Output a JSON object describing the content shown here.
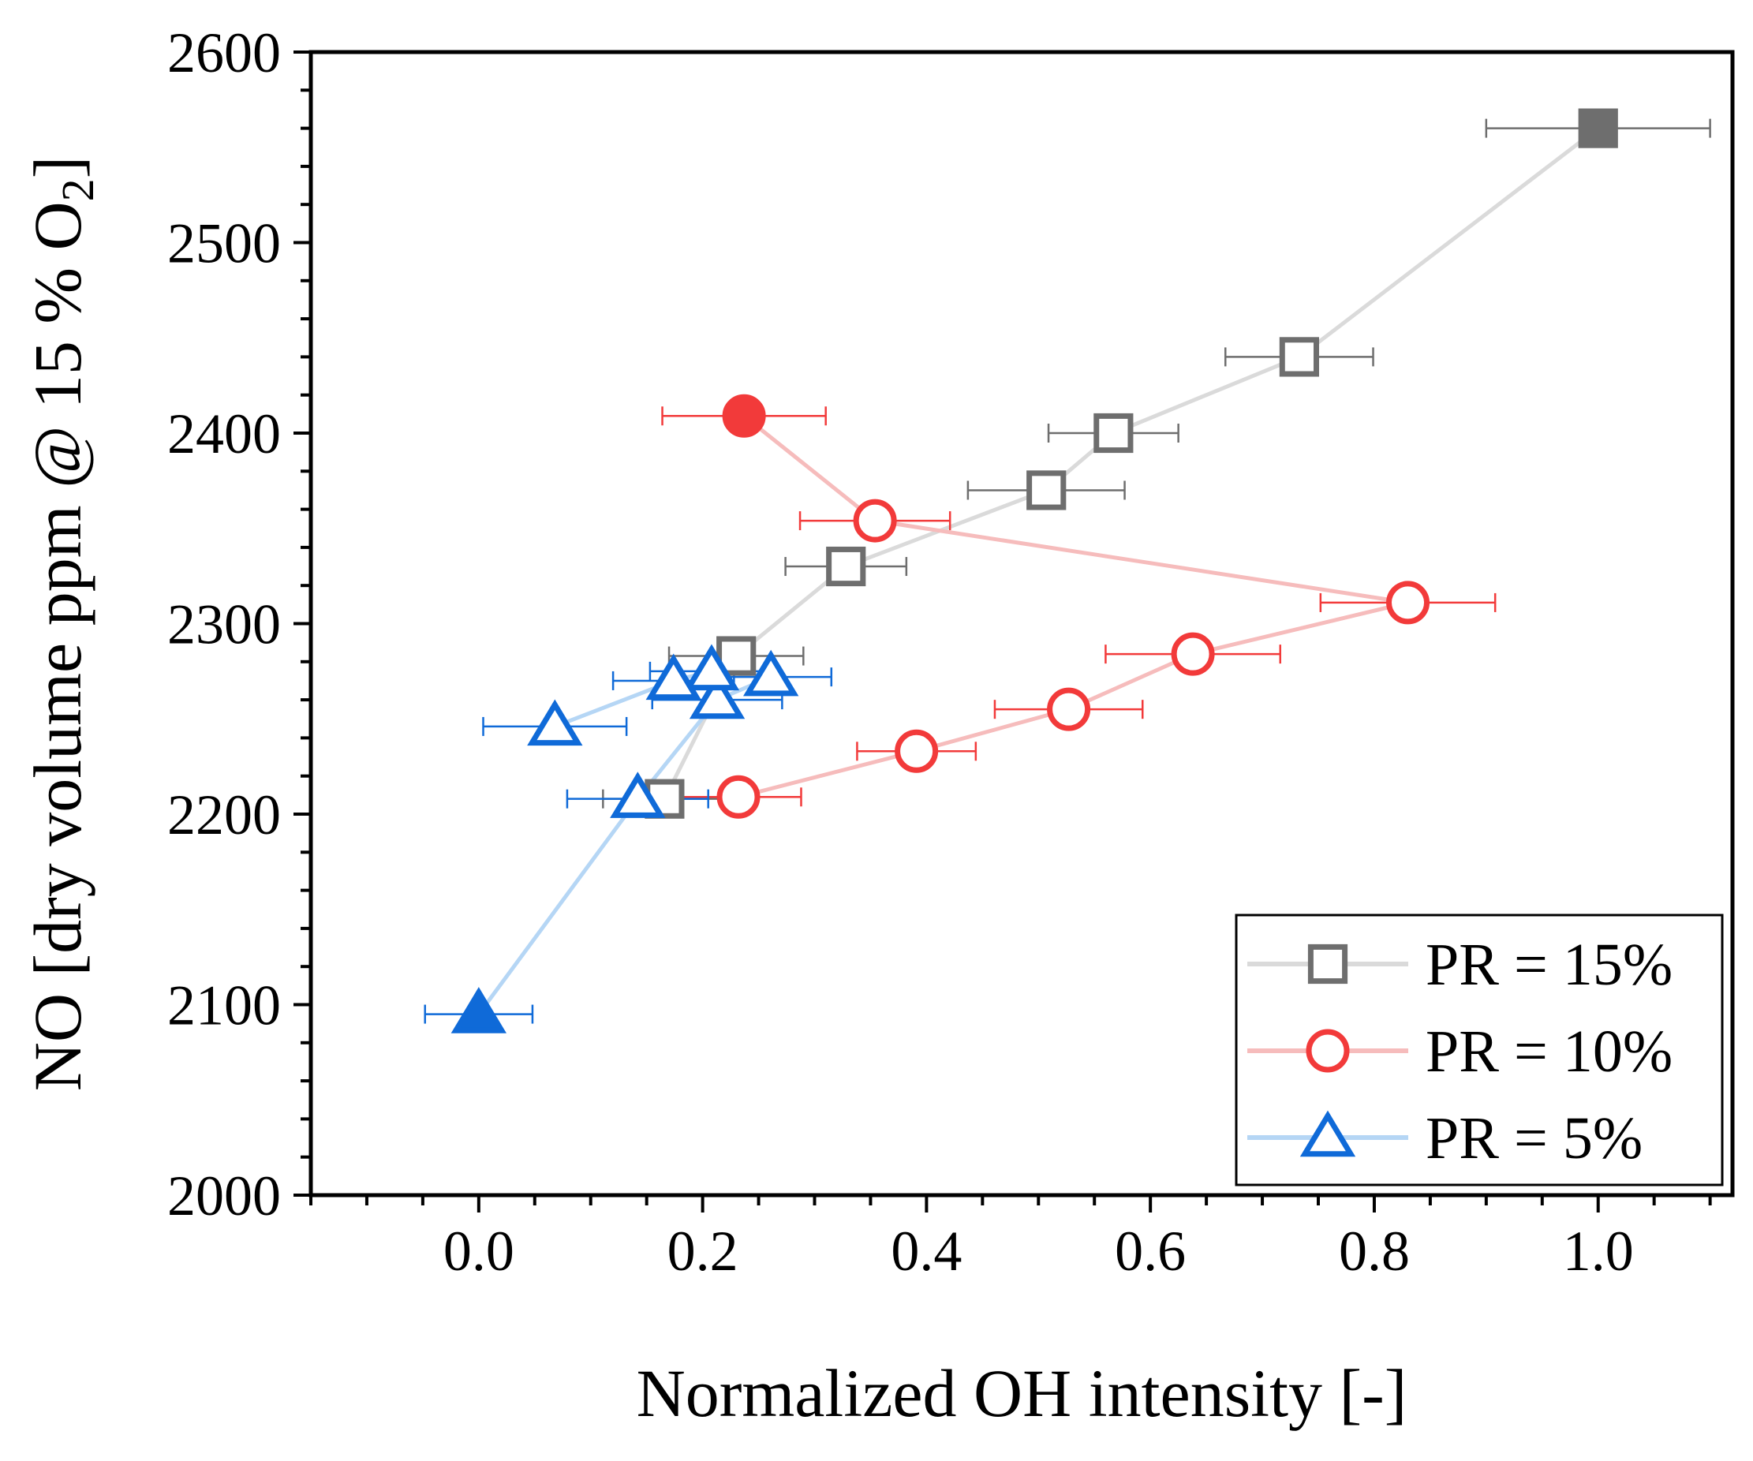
{
  "chart_data": {
    "type": "scatter",
    "xlabel": "Normalized OH intensity [-]",
    "ylabel_main": "NO [dry volume ppm @ 15 % O",
    "ylabel_sub": "2",
    "ylabel_close": "]",
    "xlim": [
      -0.15,
      1.12
    ],
    "ylim": [
      2000,
      2600
    ],
    "xticks": [
      {
        "value": 0.0,
        "label": "0.0"
      },
      {
        "value": 0.2,
        "label": "0.2"
      },
      {
        "value": 0.4,
        "label": "0.4"
      },
      {
        "value": 0.6,
        "label": "0.6"
      },
      {
        "value": 0.8,
        "label": "0.8"
      },
      {
        "value": 1.0,
        "label": "1.0"
      }
    ],
    "yticks": [
      {
        "value": 2000,
        "label": "2000"
      },
      {
        "value": 2100,
        "label": "2100"
      },
      {
        "value": 2200,
        "label": "2200"
      },
      {
        "value": 2300,
        "label": "2300"
      },
      {
        "value": 2400,
        "label": "2400"
      },
      {
        "value": 2500,
        "label": "2500"
      },
      {
        "value": 2600,
        "label": "2600"
      }
    ],
    "legend_position": "bottom-right",
    "series": [
      {
        "name": "PR = 15%",
        "marker": "square",
        "color": "#6e6e6e",
        "line_color": "#dadada",
        "points": [
          {
            "x": 1.0,
            "y": 2560,
            "xerr": 0.1,
            "filled": true
          },
          {
            "x": 0.733,
            "y": 2440,
            "xerr": 0.066,
            "filled": false
          },
          {
            "x": 0.567,
            "y": 2400,
            "xerr": 0.058,
            "filled": false
          },
          {
            "x": 0.507,
            "y": 2370,
            "xerr": 0.07,
            "filled": false
          },
          {
            "x": 0.328,
            "y": 2330,
            "xerr": 0.054,
            "filled": false
          },
          {
            "x": 0.23,
            "y": 2283,
            "xerr": 0.06,
            "filled": false
          },
          {
            "x": 0.166,
            "y": 2208,
            "xerr": 0.055,
            "filled": false
          }
        ]
      },
      {
        "name": "PR = 10%",
        "marker": "circle",
        "color": "#f23a3a",
        "line_color": "#f6bcbc",
        "points": [
          {
            "x": 0.237,
            "y": 2409,
            "xerr": 0.073,
            "filled": true
          },
          {
            "x": 0.354,
            "y": 2354,
            "xerr": 0.067,
            "filled": false
          },
          {
            "x": 0.83,
            "y": 2311,
            "xerr": 0.078,
            "filled": false
          },
          {
            "x": 0.638,
            "y": 2284,
            "xerr": 0.078,
            "filled": false
          },
          {
            "x": 0.527,
            "y": 2255,
            "xerr": 0.066,
            "filled": false
          },
          {
            "x": 0.391,
            "y": 2233,
            "xerr": 0.053,
            "filled": false
          },
          {
            "x": 0.232,
            "y": 2209,
            "xerr": 0.056,
            "filled": false
          }
        ]
      },
      {
        "name": "PR = 5%",
        "marker": "triangle",
        "color": "#0f6ad8",
        "line_color": "#b5d6f5",
        "points": [
          {
            "x": 0.0,
            "y": 2095,
            "xerr": 0.048,
            "filled": true
          },
          {
            "x": 0.142,
            "y": 2208,
            "xerr": 0.063,
            "filled": false
          },
          {
            "x": 0.213,
            "y": 2260,
            "xerr": 0.058,
            "filled": false
          },
          {
            "x": 0.261,
            "y": 2272,
            "xerr": 0.054,
            "filled": false
          },
          {
            "x": 0.208,
            "y": 2275,
            "xerr": 0.055,
            "filled": false
          },
          {
            "x": 0.174,
            "y": 2270,
            "xerr": 0.054,
            "filled": false
          },
          {
            "x": 0.068,
            "y": 2246,
            "xerr": 0.064,
            "filled": false
          }
        ]
      }
    ]
  }
}
